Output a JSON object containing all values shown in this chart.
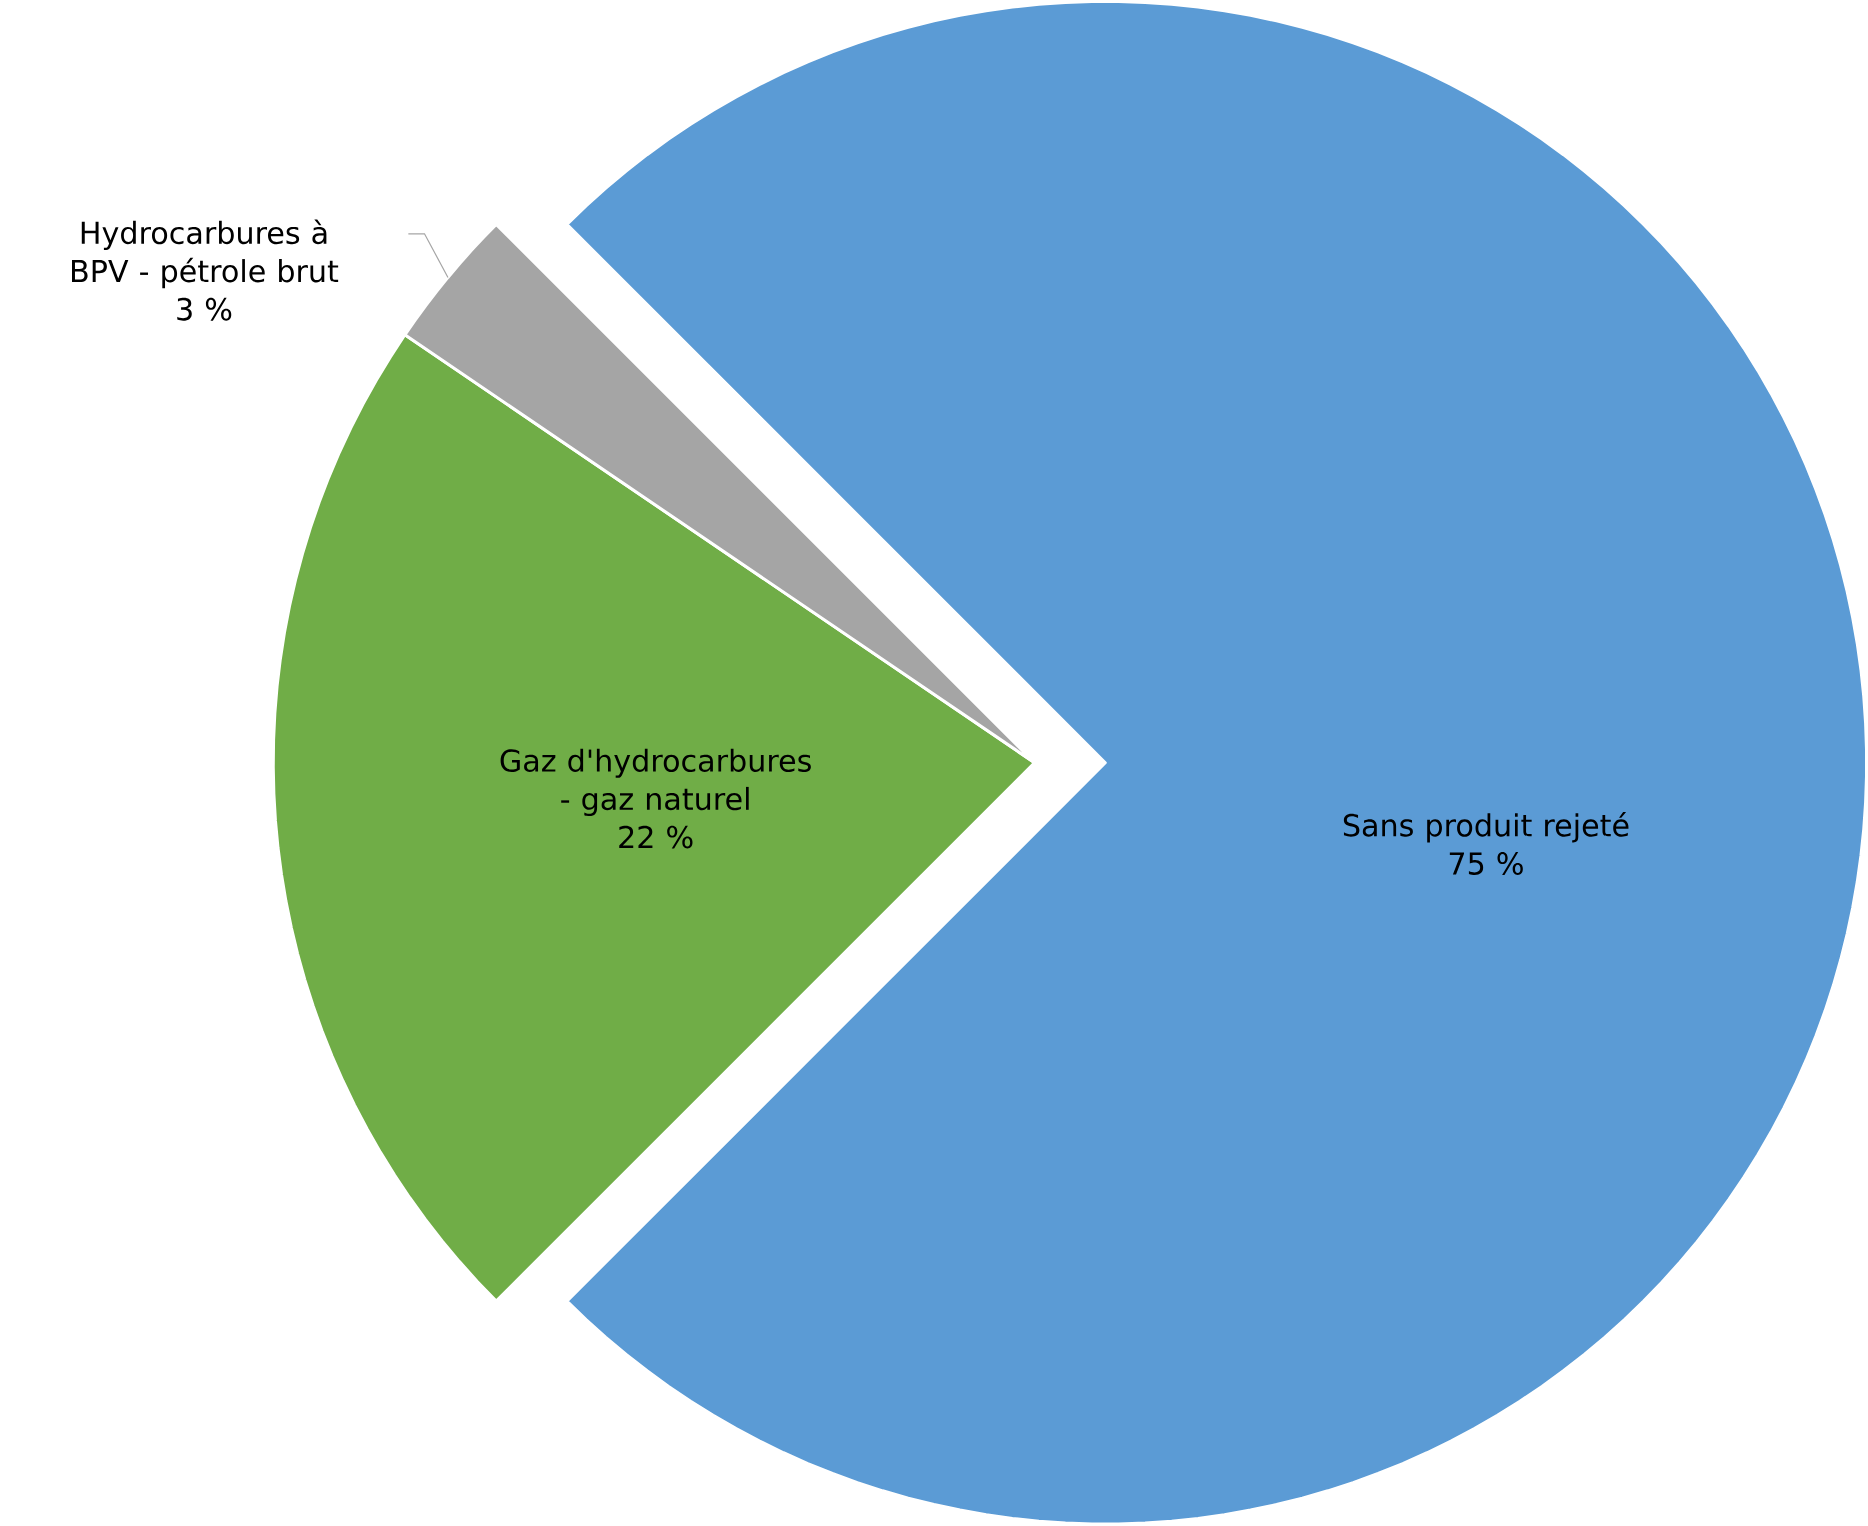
{
  "chart_data": {
    "type": "pie",
    "categories": [
      "Sans produit rejeté",
      "Gaz d'hydrocarbures - gaz naturel",
      "Hydrocarbures à BPV - pétrole brut"
    ],
    "values": [
      75,
      22,
      3
    ],
    "value_labels": [
      "75 %",
      "22 %",
      "3 %"
    ],
    "colors": [
      "#5b9bd5",
      "#70ad47",
      "#a5a5a5"
    ]
  }
}
